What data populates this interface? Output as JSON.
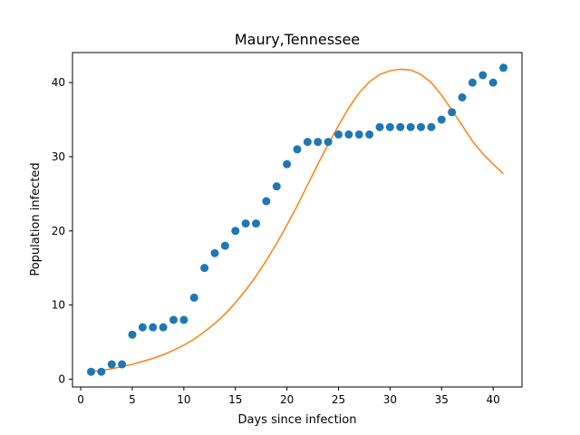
{
  "chart_data": {
    "type": "scatter",
    "title": "Maury,Tennessee",
    "xlabel": "Days since infection",
    "ylabel": "Population infected",
    "xlim": [
      -0.8,
      42.8
    ],
    "ylim": [
      -1.05,
      44.05
    ],
    "xticks": [
      0,
      5,
      10,
      15,
      20,
      25,
      30,
      35,
      40
    ],
    "yticks": [
      0,
      10,
      20,
      30,
      40
    ],
    "grid": false,
    "legend": "none",
    "colors": {
      "points": "#1f77b4",
      "fit": "#ff7f0e"
    },
    "series": [
      {
        "kind": "scatter",
        "x": [
          1,
          2,
          3,
          4,
          5,
          6,
          7,
          8,
          9,
          10,
          11,
          12,
          13,
          14,
          15,
          16,
          17,
          18,
          19,
          20,
          21,
          22,
          23,
          24,
          25,
          26,
          27,
          28,
          29,
          30,
          31,
          32,
          33,
          34,
          35,
          36,
          37,
          38,
          39,
          40,
          41
        ],
        "y": [
          1,
          1,
          2,
          2,
          6,
          7,
          7,
          7,
          8,
          8,
          11,
          15,
          17,
          18,
          20,
          21,
          21,
          24,
          26,
          29,
          31,
          32,
          32,
          32,
          33,
          33,
          33,
          33,
          34,
          34,
          34,
          34,
          34,
          34,
          35,
          36,
          38,
          40,
          41,
          40,
          42
        ]
      },
      {
        "kind": "line",
        "x": [
          1,
          2,
          3,
          4,
          5,
          6,
          7,
          8,
          9,
          10,
          11,
          12,
          13,
          14,
          15,
          16,
          17,
          18,
          19,
          20,
          21,
          22,
          23,
          24,
          25,
          26,
          27,
          28,
          29,
          30,
          31,
          32,
          33,
          34,
          35,
          36,
          37,
          38,
          39,
          40,
          41
        ],
        "y": [
          1.0,
          1.2,
          1.4,
          1.7,
          2.0,
          2.4,
          2.8,
          3.3,
          3.9,
          4.6,
          5.4,
          6.4,
          7.5,
          8.8,
          10.3,
          12.0,
          13.9,
          16.0,
          18.3,
          20.8,
          23.4,
          26.2,
          29.0,
          31.7,
          34.2,
          36.6,
          38.6,
          40.1,
          41.1,
          41.6,
          41.8,
          41.7,
          41.1,
          40.0,
          38.3,
          36.3,
          34.2,
          32.1,
          30.4,
          29.0,
          27.7
        ]
      }
    ]
  }
}
